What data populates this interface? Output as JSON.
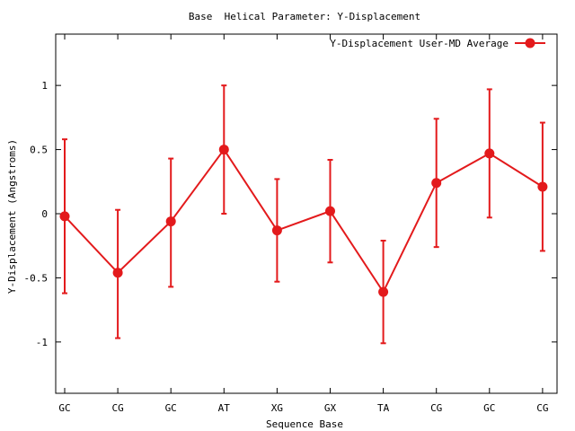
{
  "chart_data": {
    "type": "line",
    "title": "Base  Helical Parameter: Y-Displacement",
    "xlabel": "Sequence Base",
    "ylabel": "Y-Displacement (Angstroms)",
    "categories": [
      "GC",
      "CG",
      "GC",
      "AT",
      "XG",
      "GX",
      "TA",
      "CG",
      "GC",
      "CG"
    ],
    "ylim": [
      -1.4,
      1.4
    ],
    "yticks": [
      {
        "value": 1,
        "label": "1"
      },
      {
        "value": 0.5,
        "label": "0.5"
      },
      {
        "value": 0,
        "label": "0"
      },
      {
        "value": -0.5,
        "label": "-0.5"
      },
      {
        "value": -1,
        "label": "-1"
      }
    ],
    "grid": false,
    "legend_position": "top-right",
    "series": [
      {
        "name": "Y-Displacement User-MD Average",
        "color": "#e31a1c",
        "values": [
          -0.02,
          -0.46,
          -0.06,
          0.5,
          -0.13,
          0.02,
          -0.61,
          0.24,
          0.47,
          0.21
        ],
        "error_low": [
          -0.62,
          -0.97,
          -0.57,
          0.0,
          -0.53,
          -0.38,
          -1.01,
          -0.26,
          -0.03,
          -0.29
        ],
        "error_high": [
          0.58,
          0.03,
          0.43,
          1.0,
          0.27,
          0.42,
          -0.21,
          0.74,
          0.97,
          0.71
        ]
      }
    ]
  }
}
